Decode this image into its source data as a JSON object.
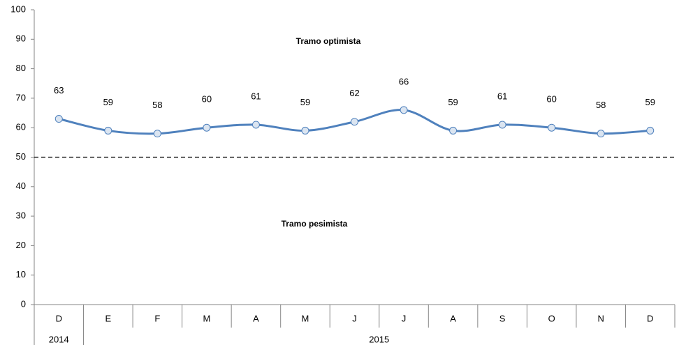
{
  "chart_data": {
    "type": "line",
    "categories": [
      "D",
      "E",
      "F",
      "M",
      "A",
      "M",
      "J",
      "J",
      "A",
      "S",
      "O",
      "N",
      "D"
    ],
    "years": [
      "2014",
      "2015",
      null,
      null,
      null,
      null,
      null,
      null,
      null,
      null,
      null,
      null,
      null
    ],
    "series": [
      {
        "color": "#4f81bd",
        "values": [
          63,
          59,
          58,
          60,
          61,
          59,
          62,
          66,
          59,
          61,
          60,
          58,
          59
        ]
      }
    ],
    "ylim": [
      0,
      100
    ],
    "yticks": [
      0,
      10,
      20,
      30,
      40,
      50,
      60,
      70,
      80,
      90,
      100
    ],
    "threshold": 50,
    "annotations": [
      "Tramo optimista",
      "Tramo pesimista"
    ]
  }
}
